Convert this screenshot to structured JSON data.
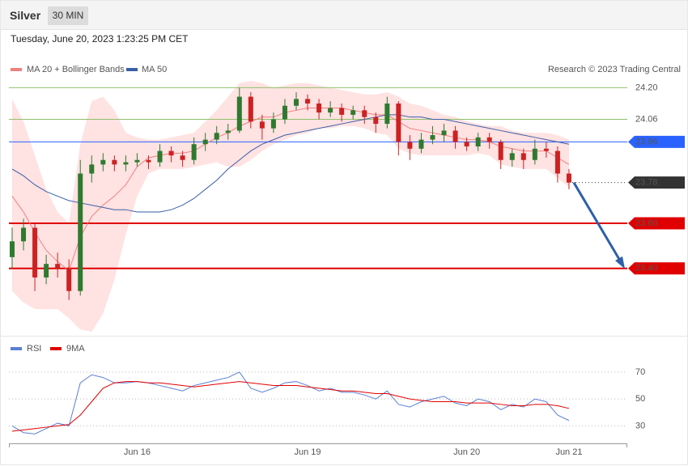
{
  "header": {
    "title": "Silver",
    "interval": "30 MIN",
    "timestamp": "Tuesday, June 20, 2023 1:23:25 PM CET"
  },
  "chart_data": [
    {
      "type": "candlestick",
      "credit": "Research © 2023 Trading Central",
      "ylim": [
        23.12,
        24.23
      ],
      "up_color": "#2f7a2f",
      "down_color": "#cc2222",
      "candles": [
        [
          23.45,
          23.58,
          23.4,
          23.52
        ],
        [
          23.52,
          23.62,
          23.48,
          23.58
        ],
        [
          23.58,
          23.6,
          23.3,
          23.36
        ],
        [
          23.36,
          23.46,
          23.33,
          23.42
        ],
        [
          23.42,
          23.47,
          23.36,
          23.4
        ],
        [
          23.4,
          23.44,
          23.26,
          23.3
        ],
        [
          23.3,
          23.88,
          23.28,
          23.82
        ],
        [
          23.82,
          23.9,
          23.78,
          23.86
        ],
        [
          23.86,
          23.91,
          23.83,
          23.88
        ],
        [
          23.88,
          23.9,
          23.83,
          23.86
        ],
        [
          23.86,
          23.9,
          23.83,
          23.87
        ],
        [
          23.87,
          23.91,
          23.85,
          23.88
        ],
        [
          23.88,
          23.9,
          23.84,
          23.87
        ],
        [
          23.87,
          23.95,
          23.85,
          23.92
        ],
        [
          23.92,
          23.94,
          23.87,
          23.9
        ],
        [
          23.9,
          23.92,
          23.85,
          23.88
        ],
        [
          23.88,
          23.98,
          23.86,
          23.95
        ],
        [
          23.95,
          24.0,
          23.92,
          23.97
        ],
        [
          23.97,
          24.03,
          23.95,
          24.0
        ],
        [
          24.0,
          24.04,
          23.97,
          24.01
        ],
        [
          24.01,
          24.2,
          24.0,
          24.16
        ],
        [
          24.16,
          24.18,
          24.02,
          24.05
        ],
        [
          24.05,
          24.08,
          23.97,
          24.02
        ],
        [
          24.02,
          24.09,
          24.0,
          24.06
        ],
        [
          24.06,
          24.15,
          24.04,
          24.12
        ],
        [
          24.12,
          24.18,
          24.1,
          24.15
        ],
        [
          24.15,
          24.17,
          24.1,
          24.13
        ],
        [
          24.13,
          24.15,
          24.06,
          24.09
        ],
        [
          24.09,
          24.14,
          24.07,
          24.11
        ],
        [
          24.11,
          24.13,
          24.05,
          24.08
        ],
        [
          24.08,
          24.12,
          24.06,
          24.1
        ],
        [
          24.1,
          24.12,
          24.04,
          24.07
        ],
        [
          24.07,
          24.09,
          24.0,
          24.04
        ],
        [
          24.04,
          24.16,
          24.02,
          24.13
        ],
        [
          24.13,
          24.14,
          23.9,
          23.96
        ],
        [
          23.96,
          23.99,
          23.88,
          23.93
        ],
        [
          23.93,
          24.0,
          23.91,
          23.97
        ],
        [
          23.97,
          24.03,
          23.95,
          23.99
        ],
        [
          23.99,
          24.04,
          23.96,
          24.01
        ],
        [
          24.01,
          24.03,
          23.93,
          23.96
        ],
        [
          23.96,
          23.98,
          23.92,
          23.94
        ],
        [
          23.94,
          24.0,
          23.92,
          23.98
        ],
        [
          23.98,
          24.0,
          23.93,
          23.96
        ],
        [
          23.96,
          23.97,
          23.84,
          23.88
        ],
        [
          23.88,
          23.93,
          23.85,
          23.91
        ],
        [
          23.91,
          23.93,
          23.84,
          23.88
        ],
        [
          23.88,
          23.97,
          23.86,
          23.93
        ],
        [
          23.93,
          23.96,
          23.89,
          23.92
        ],
        [
          23.92,
          23.94,
          23.78,
          23.82
        ],
        [
          23.82,
          23.84,
          23.75,
          23.78
        ]
      ],
      "series": [
        {
          "name": "MA 20 + Bollinger Bands",
          "color": "#f08080",
          "band_color": "#ffe2e2",
          "values": [
            23.72,
            23.65,
            23.56,
            23.48,
            23.43,
            23.39,
            23.54,
            23.63,
            23.68,
            23.72,
            23.77,
            23.85,
            23.89,
            23.9,
            23.91,
            23.91,
            23.92,
            23.95,
            23.98,
            24.0,
            24.03,
            24.05,
            24.07,
            24.07,
            24.09,
            24.1,
            24.11,
            24.11,
            24.11,
            24.11,
            24.1,
            24.09,
            24.08,
            24.08,
            24.05,
            24.02,
            24.01,
            24.0,
            23.99,
            23.98,
            23.97,
            23.97,
            23.96,
            23.94,
            23.93,
            23.92,
            23.92,
            23.92,
            23.89,
            23.86
          ],
          "upper": [
            24.15,
            24.05,
            23.9,
            23.75,
            23.65,
            23.6,
            23.95,
            24.14,
            24.16,
            24.1,
            24.0,
            23.98,
            23.97,
            23.97,
            23.98,
            23.99,
            24.0,
            24.05,
            24.1,
            24.16,
            24.22,
            24.23,
            24.22,
            24.2,
            24.21,
            24.22,
            24.22,
            24.21,
            24.2,
            24.19,
            24.18,
            24.17,
            24.17,
            24.18,
            24.16,
            24.13,
            24.12,
            24.1,
            24.08,
            24.07,
            24.05,
            24.04,
            24.03,
            24.03,
            24.01,
            24.0,
            24.0,
            24.0,
            23.99,
            23.97
          ],
          "lower": [
            23.3,
            23.25,
            23.22,
            23.22,
            23.22,
            23.18,
            23.13,
            23.12,
            23.2,
            23.35,
            23.55,
            23.72,
            23.82,
            23.84,
            23.84,
            23.84,
            23.85,
            23.86,
            23.87,
            23.85,
            23.85,
            23.88,
            23.92,
            23.95,
            23.97,
            23.99,
            24.0,
            24.02,
            24.02,
            24.03,
            24.03,
            24.02,
            24.0,
            23.99,
            23.93,
            23.91,
            23.9,
            23.9,
            23.9,
            23.9,
            23.9,
            23.91,
            23.9,
            23.86,
            23.85,
            23.84,
            23.84,
            23.84,
            23.8,
            23.76
          ]
        },
        {
          "name": "MA 50",
          "color": "#3b5ea8",
          "values": [
            23.84,
            23.81,
            23.77,
            23.74,
            23.72,
            23.7,
            23.69,
            23.68,
            23.67,
            23.66,
            23.66,
            23.65,
            23.65,
            23.65,
            23.66,
            23.68,
            23.71,
            23.75,
            23.79,
            23.84,
            23.88,
            23.92,
            23.95,
            23.97,
            23.99,
            24.0,
            24.01,
            24.02,
            24.03,
            24.04,
            24.05,
            24.06,
            24.07,
            24.08,
            24.08,
            24.07,
            24.07,
            24.06,
            24.06,
            24.05,
            24.04,
            24.03,
            24.02,
            24.01,
            24.0,
            23.99,
            23.98,
            23.97,
            23.96,
            23.95
          ]
        }
      ],
      "levels": [
        {
          "value": 24.2,
          "label": "24.20",
          "color": "#8fc06a",
          "text_color": "#5f9a1f",
          "style": "solid",
          "badge": false
        },
        {
          "value": 24.06,
          "label": "24.06",
          "color": "#8fc06a",
          "text_color": "#5f9a1f",
          "style": "solid",
          "badge": false
        },
        {
          "value": 23.96,
          "label": "23.96",
          "color": "#2962ff",
          "text_color": "#ffffff",
          "style": "solid",
          "badge": true
        },
        {
          "value": 23.78,
          "label": "23.78",
          "color": "#333333",
          "text_color": "#ffffff",
          "style": "dotted",
          "badge": true
        },
        {
          "value": 23.6,
          "label": "23.60",
          "color": "#e00000",
          "text_color": "#ffffff",
          "style": "thick",
          "badge": true
        },
        {
          "value": 23.4,
          "label": "23.40",
          "color": "#e00000",
          "text_color": "#ffffff",
          "style": "thick",
          "badge": true
        }
      ],
      "forecast_arrow": {
        "color": "#2f5fa8",
        "target": 23.4
      }
    },
    {
      "type": "line",
      "ylim": [
        17,
        82
      ],
      "yticks": [
        30,
        50,
        70
      ],
      "grid": true,
      "categories": [
        null,
        null,
        null,
        null,
        null,
        null,
        null,
        null,
        null,
        null,
        null,
        "Jun 16",
        null,
        null,
        null,
        null,
        null,
        null,
        null,
        null,
        null,
        null,
        null,
        null,
        null,
        null,
        "Jun 19",
        null,
        null,
        null,
        null,
        null,
        null,
        null,
        null,
        null,
        null,
        null,
        null,
        null,
        "Jun 20",
        null,
        null,
        null,
        null,
        null,
        null,
        null,
        null,
        "Jun 21"
      ],
      "series": [
        {
          "name": "RSI",
          "color": "#5b7fd6",
          "values": [
            30,
            25,
            24,
            28,
            32,
            30,
            62,
            68,
            66,
            62,
            62,
            63,
            62,
            60,
            58,
            56,
            60,
            62,
            64,
            66,
            70,
            58,
            55,
            58,
            62,
            63,
            60,
            56,
            58,
            55,
            55,
            53,
            50,
            56,
            46,
            44,
            48,
            50,
            52,
            47,
            45,
            50,
            48,
            42,
            46,
            44,
            50,
            48,
            38,
            34
          ]
        },
        {
          "name": "9MA",
          "color": "#e00000",
          "values": [
            26,
            27,
            28,
            29,
            30,
            31,
            38,
            48,
            58,
            62,
            63,
            63,
            62,
            62,
            61,
            60,
            59,
            60,
            61,
            62,
            63,
            62,
            61,
            60,
            60,
            60,
            59,
            58,
            57,
            56,
            56,
            55,
            54,
            54,
            52,
            50,
            49,
            48,
            48,
            48,
            47,
            47,
            47,
            46,
            45,
            45,
            46,
            46,
            45,
            43
          ]
        }
      ]
    }
  ]
}
